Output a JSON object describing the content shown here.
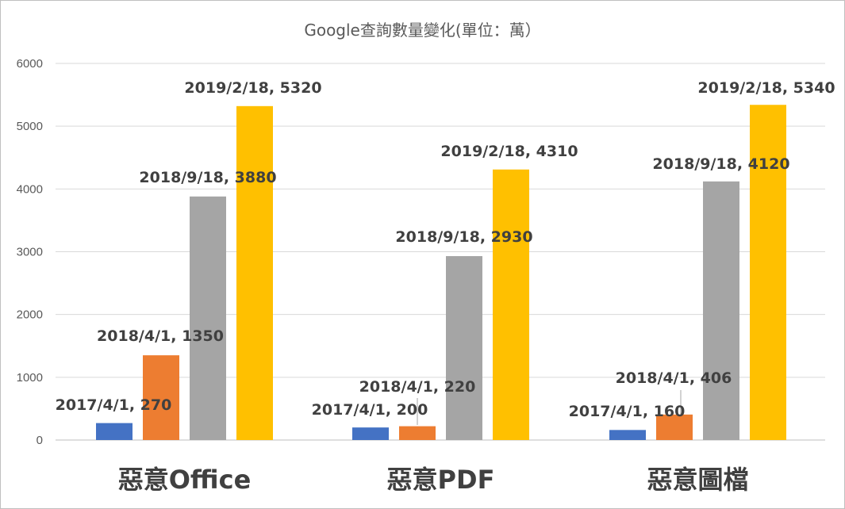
{
  "chart_data": {
    "type": "bar",
    "title": "Google查詢數量變化(單位：萬）",
    "categories": [
      "惡意Office",
      "惡意PDF",
      "惡意圖檔"
    ],
    "series": [
      {
        "dates": [
          "2017/4/1",
          "2017/4/1",
          "2017/4/1"
        ],
        "values": [
          270,
          200,
          160
        ],
        "color": "#4472C4"
      },
      {
        "dates": [
          "2018/4/1",
          "2018/4/1",
          "2018/4/1"
        ],
        "values": [
          1350,
          220,
          406
        ],
        "color": "#ED7D31"
      },
      {
        "dates": [
          "2018/9/18",
          "2018/9/18",
          "2018/9/18"
        ],
        "values": [
          3880,
          2930,
          4120
        ],
        "color": "#A5A5A5"
      },
      {
        "dates": [
          "2019/2/18",
          "2019/2/18",
          "2019/2/18"
        ],
        "values": [
          5320,
          4310,
          5340
        ],
        "color": "#FFC000"
      }
    ],
    "data_labels": [
      [
        "2017/4/1, 270",
        "2018/4/1, 1350",
        "2018/9/18, 3880",
        "2019/2/18, 5320"
      ],
      [
        "2017/4/1, 200",
        "2018/4/1, 220",
        "2018/9/18, 2930",
        "2019/2/18, 4310"
      ],
      [
        "2017/4/1, 160",
        "2018/4/1, 406",
        "2018/9/18, 4120",
        "2019/2/18, 5340"
      ]
    ],
    "yticks": [
      0,
      1000,
      2000,
      3000,
      4000,
      5000,
      6000
    ],
    "ylim": [
      0,
      6000
    ],
    "grid": true,
    "legend": "none"
  }
}
